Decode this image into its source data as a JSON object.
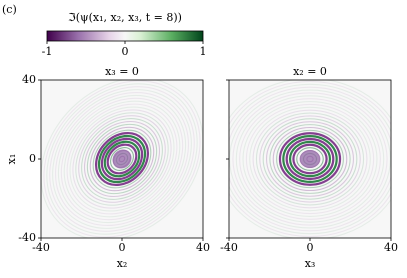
{
  "panel_label": "(c)",
  "colorbar": {
    "label": "ℑ(ψ(x₁, x₂, x₃, t = 8))",
    "lim": [
      -1,
      1
    ],
    "ticks": [
      -1,
      0,
      1
    ]
  },
  "chart_data": [
    {
      "type": "heatmap",
      "title": "x₃ = 0",
      "x_label": "x₂",
      "y_label": "x₁",
      "xlim": [
        -40,
        40
      ],
      "ylim": [
        -40,
        40
      ],
      "xticks": [
        -40,
        0,
        40
      ],
      "yticks": [
        -40,
        0,
        40
      ]
    },
    {
      "type": "heatmap",
      "title": "x₂ = 0",
      "x_label": "x₃",
      "xlim": [
        -40,
        40
      ],
      "ylim": [
        -40,
        40
      ],
      "xticks": [
        -40,
        0,
        40
      ]
    }
  ]
}
